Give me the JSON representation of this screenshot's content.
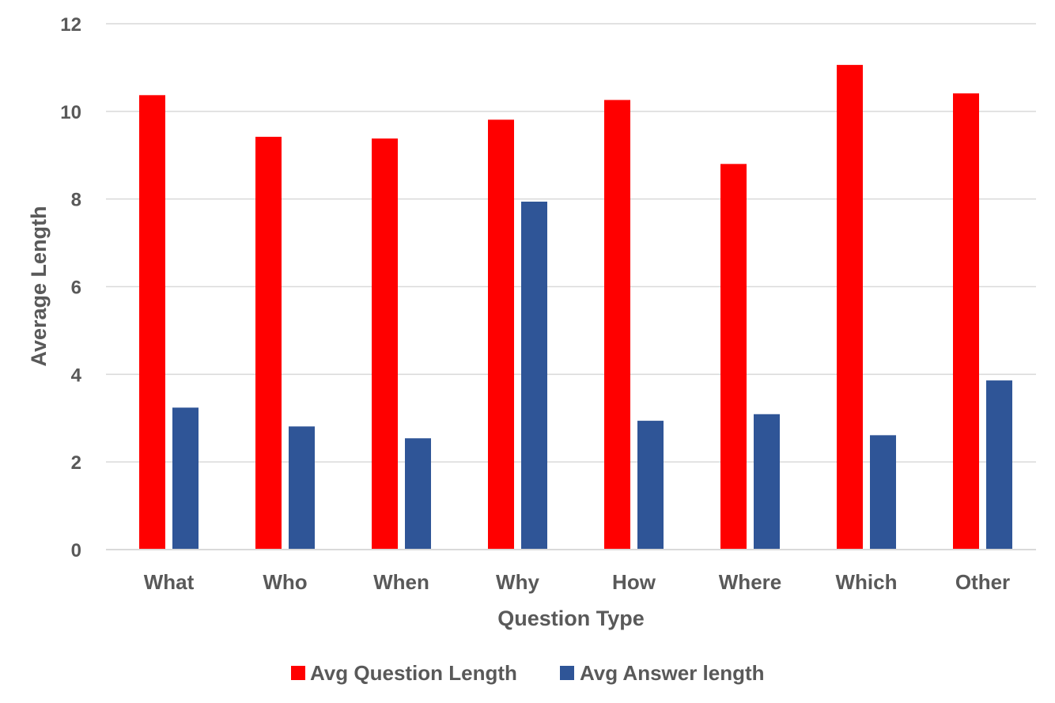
{
  "chart_data": {
    "type": "bar",
    "title": "",
    "xlabel": "Question Type",
    "ylabel": "Average Length",
    "categories": [
      "What",
      "Who",
      "When",
      "Why",
      "How",
      "Where",
      "Which",
      "Other"
    ],
    "series": [
      {
        "name": "Avg Question Length",
        "color": "#ff0000",
        "values": [
          10.37,
          9.42,
          9.38,
          9.81,
          10.26,
          8.8,
          11.06,
          10.41
        ]
      },
      {
        "name": "Avg Answer length",
        "color": "#2f5597",
        "values": [
          3.24,
          2.81,
          2.54,
          7.94,
          2.94,
          3.09,
          2.61,
          3.86
        ]
      }
    ],
    "ylim": [
      0,
      12
    ],
    "yticks": [
      "0",
      "2",
      "4",
      "6",
      "8",
      "10",
      "12"
    ],
    "grid": true,
    "legend_position": "bottom"
  }
}
